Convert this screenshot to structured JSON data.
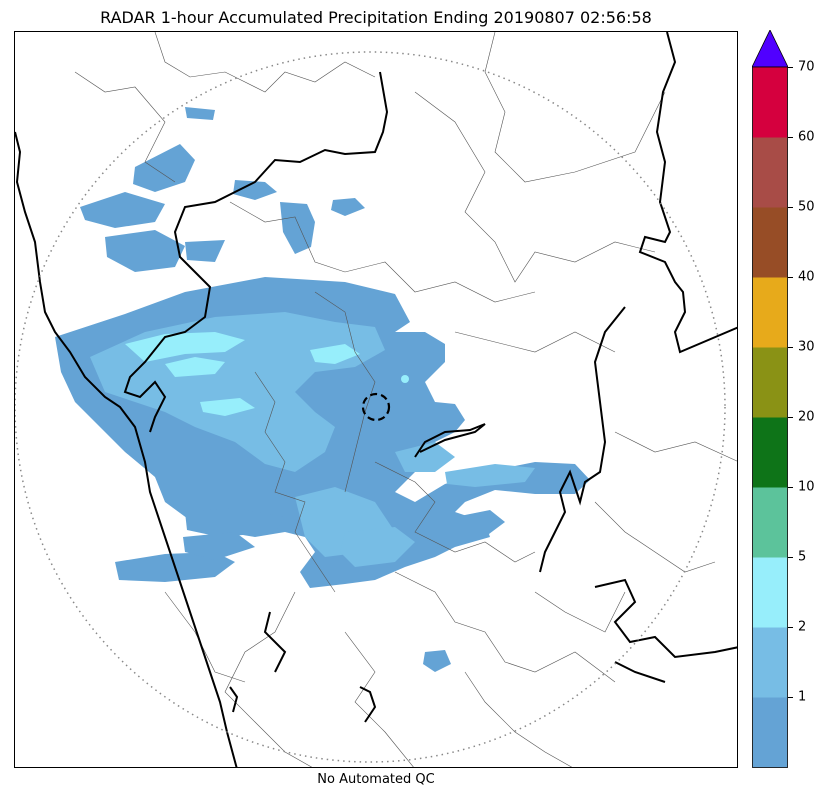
{
  "title": "RADAR 1-hour Accumulated Precipitation Ending 20190807 02:56:58",
  "footer": "No Automated QC",
  "colorbar": {
    "extend": "max",
    "ticks": [
      "1",
      "2",
      "5",
      "10",
      "20",
      "30",
      "40",
      "50",
      "60",
      "70"
    ],
    "colors": [
      "#64a3d5",
      "#77bde5",
      "#97eefb",
      "#5cc39b",
      "#0e7418",
      "#8a9215",
      "#e7aa1b",
      "#974d26",
      "#a84c47",
      "#d5003e",
      "#5000ff"
    ]
  },
  "map": {
    "features": [
      "state-borders",
      "district-borders",
      "coastline",
      "radar-range-ring",
      "precipitation-field",
      "radar-site-marker"
    ],
    "colors": {
      "light_rain": "#64a3d5",
      "moderate_rain": "#77bde5",
      "heavy_rain": "#97eefb",
      "state_border": "#000000",
      "district_border": "#555555",
      "range_ring": "#888888"
    }
  }
}
